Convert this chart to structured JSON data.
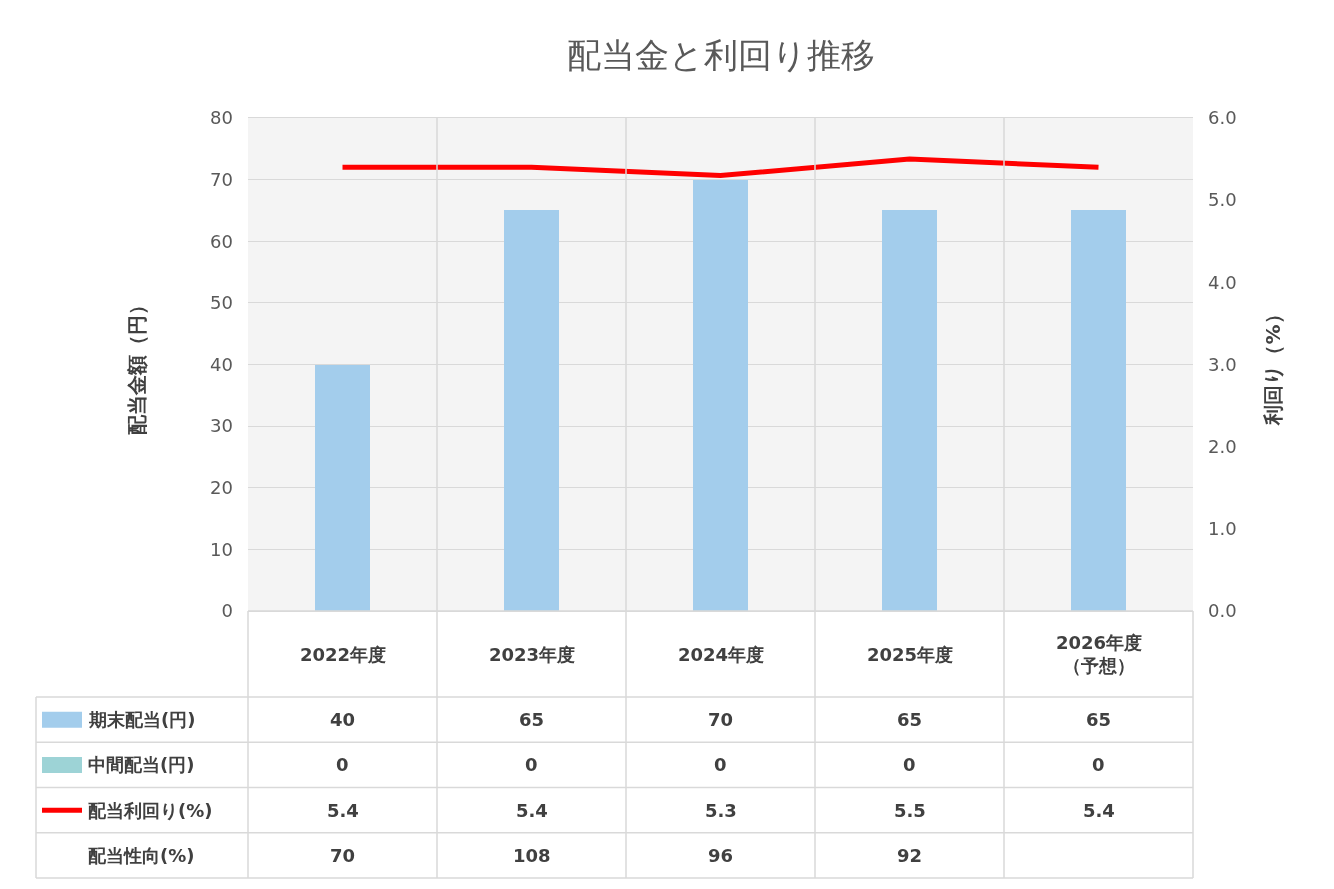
{
  "chart_data": {
    "type": "bar",
    "title": "配当金と利回り推移",
    "ylabel": "配当金額（円）",
    "y2label": "利回り（%）",
    "categories": [
      "2022年度",
      "2023年度",
      "2024年度",
      "2025年度",
      "2026年度（予想）"
    ],
    "stacked": true,
    "ylim": [
      0,
      80
    ],
    "yticks": [
      0,
      10,
      20,
      30,
      40,
      50,
      60,
      70,
      80
    ],
    "y2lim": [
      0,
      6
    ],
    "y2ticks": [
      {
        "value": 0,
        "label": "0.0"
      },
      {
        "value": 1,
        "label": "1.0"
      },
      {
        "value": 2,
        "label": "2.0"
      },
      {
        "value": 3,
        "label": "3.0"
      },
      {
        "value": 4,
        "label": "4.0"
      },
      {
        "value": 5,
        "label": "5.0"
      },
      {
        "value": 6,
        "label": "6.0"
      }
    ],
    "series": [
      {
        "name": "期末配当(円)",
        "color": "#a3cdec",
        "values": [
          40,
          65,
          70,
          65,
          65
        ]
      },
      {
        "name": "中間配当(円)",
        "color": "#9dd3d6",
        "values": [
          0,
          0,
          0,
          0,
          0
        ]
      },
      {
        "name": "配当利回り(%)",
        "type": "line",
        "axis": "y2",
        "color": "#ff0000",
        "values": [
          5.4,
          5.4,
          5.3,
          5.5,
          5.4
        ]
      }
    ],
    "annotations": [
      "配当性向(%)",
      "70",
      "108",
      "96",
      "92"
    ],
    "data_labels": true,
    "grid": "y",
    "legend": "bottom left",
    "marker": "none",
    "line_style": "solid"
  }
}
